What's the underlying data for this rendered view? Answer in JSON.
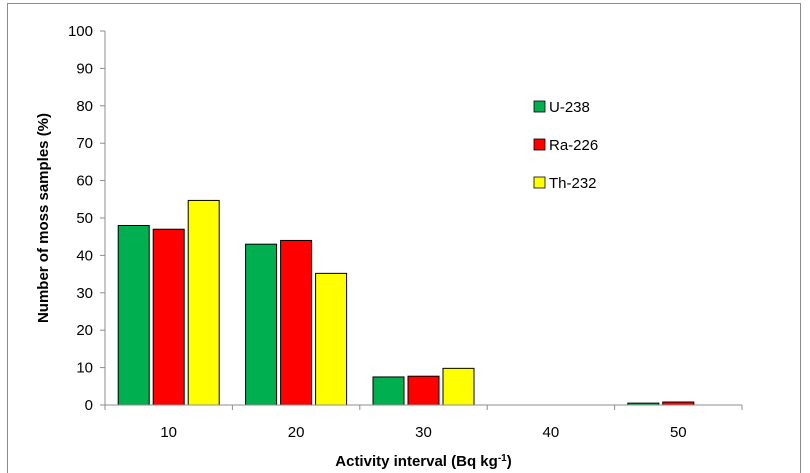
{
  "chart_data": {
    "type": "bar",
    "categories": [
      "10",
      "20",
      "30",
      "40",
      "50"
    ],
    "series": [
      {
        "name": "U-238",
        "color": "#00b050",
        "values": [
          48,
          43,
          7.5,
          0,
          0.5
        ]
      },
      {
        "name": "Ra-226",
        "color": "#ff0000",
        "values": [
          47,
          44,
          7.7,
          0,
          0.8
        ]
      },
      {
        "name": "Th-232",
        "color": "#ffff00",
        "values": [
          54.7,
          35.2,
          9.8,
          0,
          0
        ]
      }
    ],
    "xlabel": "Activity interval (Bq kg",
    "xlabel_sup": "-1",
    "xlabel_end": ")",
    "ylabel": "Number of moss samples (%)",
    "ylim": [
      0,
      100
    ],
    "yticks": [
      0,
      10,
      20,
      30,
      40,
      50,
      60,
      70,
      80,
      90,
      100
    ],
    "grid": false,
    "legend_position": "right"
  }
}
